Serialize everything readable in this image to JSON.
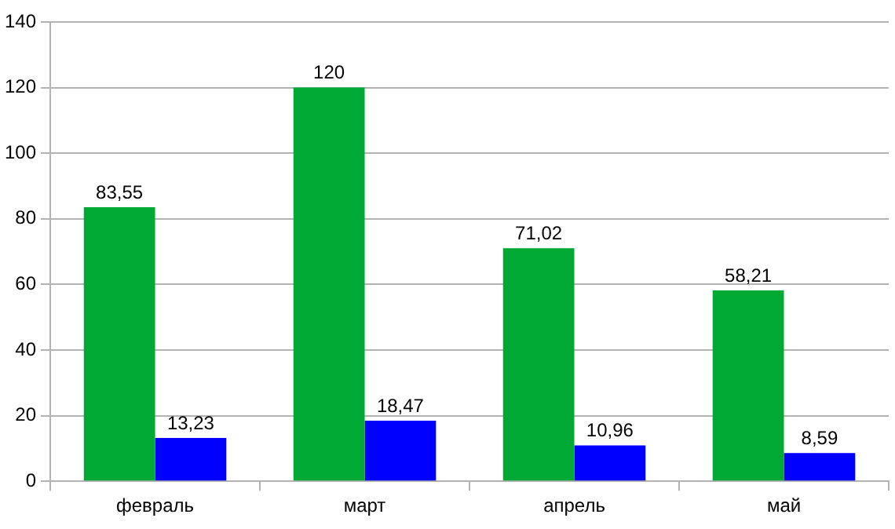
{
  "chart_data": {
    "type": "bar",
    "categories": [
      "февраль",
      "март",
      "апрель",
      "май"
    ],
    "series": [
      {
        "color": "#00a933",
        "values": [
          83.55,
          120,
          71.02,
          58.21
        ],
        "value_labels": [
          "83,55",
          "120",
          "71,02",
          "58,21"
        ]
      },
      {
        "color": "#0000ff",
        "values": [
          13.23,
          18.47,
          10.96,
          8.59
        ],
        "value_labels": [
          "13,23",
          "18,47",
          "10,96",
          "8,59"
        ]
      }
    ],
    "ylim": [
      0,
      140
    ],
    "yticks": [
      0,
      20,
      40,
      60,
      80,
      100,
      120,
      140
    ],
    "grid": "y",
    "legend": false
  }
}
